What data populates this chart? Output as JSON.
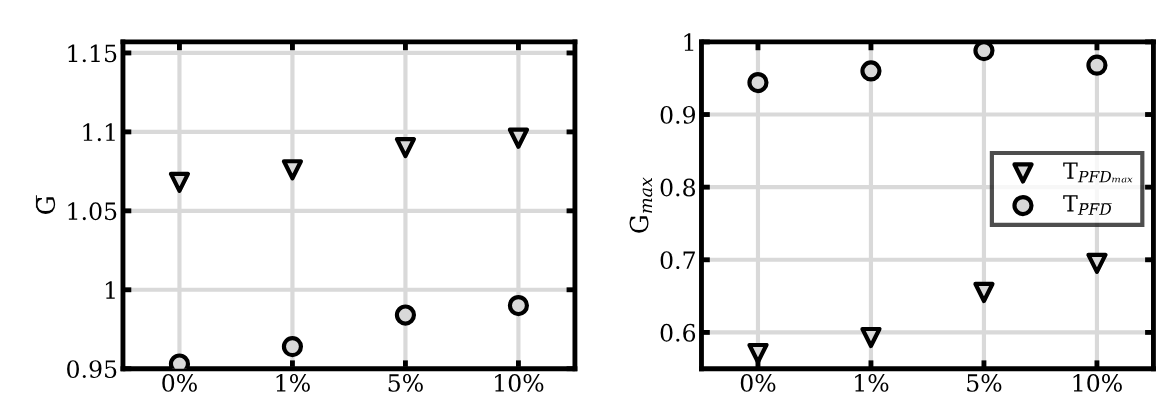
{
  "chart_data": [
    {
      "type": "scatter",
      "categories": [
        "0%",
        "1%",
        "5%",
        "10%"
      ],
      "ylabel": "G̅",
      "ylim": [
        0.95,
        1.157
      ],
      "yticks": [
        0.95,
        1,
        1.05,
        1.1,
        1.15
      ],
      "grid": true,
      "legend": false,
      "series": [
        {
          "color": "#000000",
          "marker": "triangle",
          "values": [
            1.068,
            1.076,
            1.09,
            1.096
          ]
        },
        {
          "color": "#000000",
          "marker": "circle",
          "values": [
            0.953,
            0.964,
            0.984,
            0.99
          ]
        }
      ]
    },
    {
      "type": "scatter",
      "categories": [
        "0%",
        "1%",
        "5%",
        "10%"
      ],
      "ylabel": "G$_{max}$",
      "ylim": [
        0.55,
        1
      ],
      "yticks": [
        0.6,
        0.7,
        0.8,
        0.9,
        1
      ],
      "grid": true,
      "legend": "right",
      "series": [
        {
          "name": "T$_{PFDₘₐₓ}$",
          "color": "#000000",
          "marker": "triangle",
          "values": [
            0.571,
            0.593,
            0.655,
            0.695
          ]
        },
        {
          "name": "T$_{P̅F̅D̅}$",
          "color": "#000000",
          "marker": "circle",
          "values": [
            0.944,
            0.96,
            0.988,
            0.968
          ]
        }
      ]
    }
  ]
}
